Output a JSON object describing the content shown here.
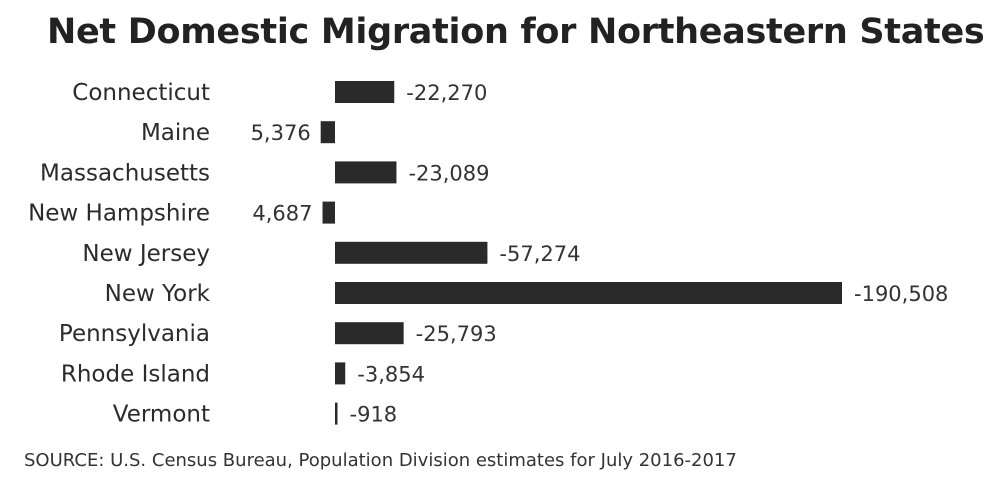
{
  "chart_data": {
    "type": "bar",
    "orientation": "horizontal",
    "title": "Net Domestic Migration for Northeastern States",
    "source": "SOURCE: U.S. Census Bureau, Population Division estimates for July 2016-2017",
    "categories": [
      "Connecticut",
      "Maine",
      "Massachusetts",
      "New Hampshire",
      "New Jersey",
      "New York",
      "Pennsylvania",
      "Rhode Island",
      "Vermont"
    ],
    "values": [
      -22270,
      5376,
      -23089,
      4687,
      -57274,
      -190508,
      -25793,
      -3854,
      -918
    ],
    "value_labels": [
      "-22,270",
      "5,376",
      "-23,089",
      "4,687",
      "-57,274",
      "-190,508",
      "-25,793",
      "-3,854",
      "-918"
    ],
    "negative_extends": "right",
    "bar_color": "#2a2a2a",
    "grid": false,
    "legend": "none"
  }
}
